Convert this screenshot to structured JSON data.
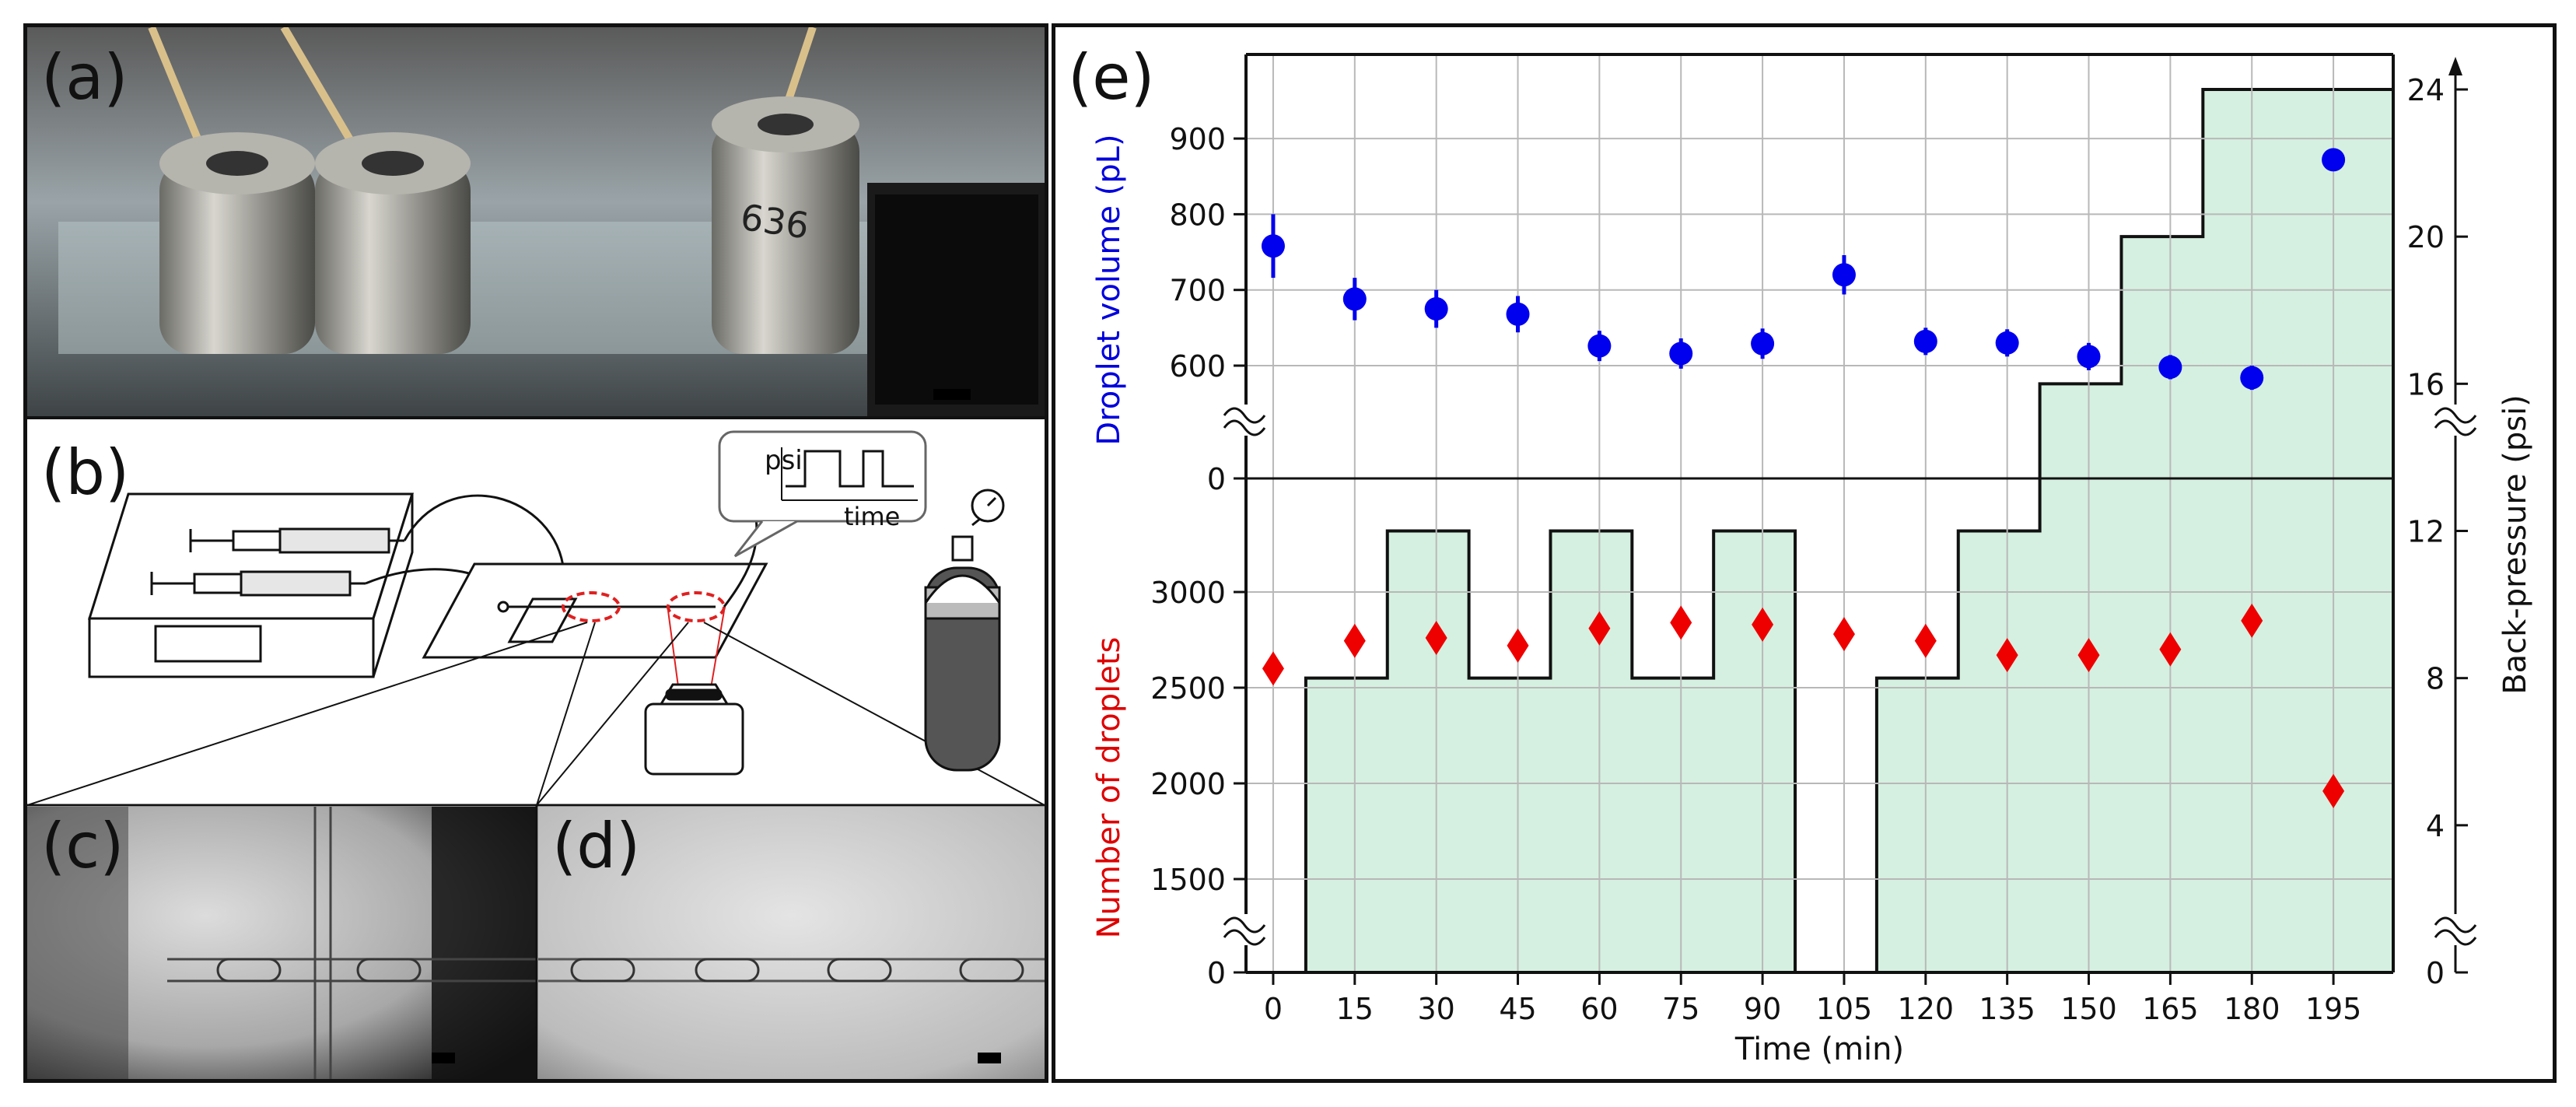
{
  "panels": {
    "a": "(a)",
    "b": "(b)",
    "c": "(c)",
    "d": "(d)",
    "e": "(e)"
  },
  "schematic": {
    "inset_ylabel": "psi",
    "inset_xlabel": "time",
    "vial_marking": "636"
  },
  "chart_data": {
    "type": "scatter",
    "xlabel": "Time (min)",
    "ylabel_top": "Droplet volume (pL)",
    "ylabel_bottom": "Number of droplets",
    "ylabel_right": "Back-pressure (psi)",
    "x_ticks": [
      0,
      15,
      30,
      45,
      60,
      75,
      90,
      105,
      120,
      135,
      150,
      165,
      180,
      195
    ],
    "y_top_ticks": [
      600,
      700,
      800,
      900
    ],
    "y_top_break": 0,
    "y_bottom_ticks": [
      1500,
      2000,
      2500,
      3000
    ],
    "y_bottom_break": 0,
    "y_right_ticks": [
      0,
      4,
      8,
      12,
      16,
      20,
      24
    ],
    "grid": true,
    "series": [
      {
        "name": "Droplet volume (pL)",
        "color": "#0000ee",
        "marker": "circle",
        "x": [
          0,
          15,
          30,
          45,
          60,
          75,
          90,
          105,
          120,
          135,
          150,
          165,
          180,
          195
        ],
        "y": [
          758,
          688,
          675,
          668,
          626,
          616,
          629,
          720,
          632,
          630,
          612,
          598,
          584,
          872
        ],
        "err": [
          42,
          28,
          25,
          24,
          20,
          20,
          20,
          26,
          18,
          18,
          18,
          16,
          16,
          0
        ]
      },
      {
        "name": "Number of droplets",
        "color": "#ee0000",
        "marker": "diamond",
        "x": [
          0,
          15,
          30,
          45,
          60,
          75,
          90,
          105,
          120,
          135,
          150,
          165,
          180,
          195
        ],
        "y": [
          2600,
          2745,
          2760,
          2720,
          2810,
          2840,
          2830,
          2780,
          2745,
          2670,
          2670,
          2700,
          2850,
          1960
        ]
      }
    ],
    "back_pressure": {
      "color": "#d5f0e0",
      "t": [
        -5,
        6,
        6,
        21,
        21,
        36,
        36,
        51,
        51,
        66,
        66,
        81,
        81,
        96,
        96,
        111,
        111,
        126,
        126,
        141,
        141,
        156,
        156,
        171,
        171,
        206
      ],
      "psi": [
        0,
        0,
        8,
        8,
        12,
        12,
        8,
        8,
        12,
        12,
        8,
        8,
        12,
        12,
        0,
        0,
        8,
        8,
        12,
        12,
        16,
        16,
        20,
        20,
        24,
        24
      ]
    }
  }
}
